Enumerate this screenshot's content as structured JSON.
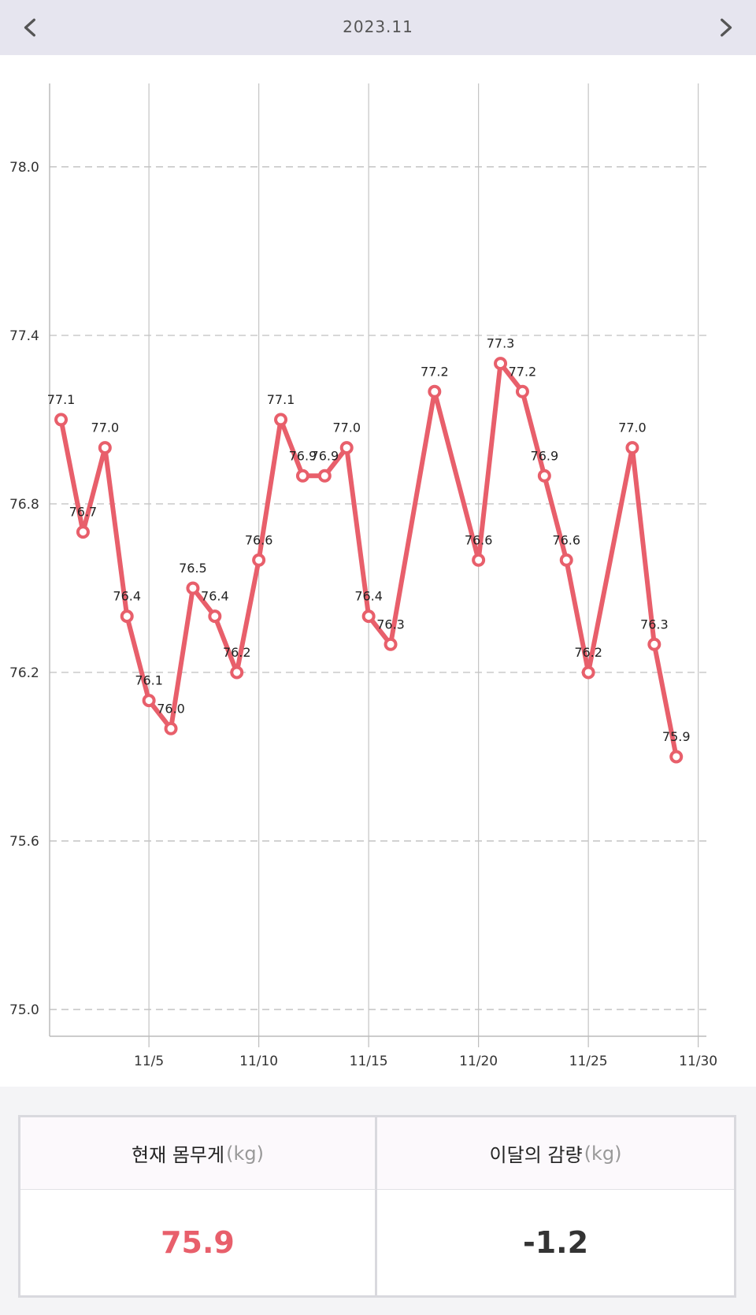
{
  "header": {
    "title": "2023.11",
    "prev_icon": "chevron-left-icon",
    "next_icon": "chevron-right-icon"
  },
  "chart_data": {
    "type": "line",
    "ylim": [
      75.0,
      78.3
    ],
    "y_ticks": [
      "75.0",
      "75.6",
      "76.2",
      "76.8",
      "77.4",
      "78.0"
    ],
    "x_tick_labels": [
      {
        "day": 5,
        "label": "11/5"
      },
      {
        "day": 10,
        "label": "11/10"
      },
      {
        "day": 15,
        "label": "11/15"
      },
      {
        "day": 20,
        "label": "11/20"
      },
      {
        "day": 25,
        "label": "11/25"
      },
      {
        "day": 30,
        "label": "11/30"
      }
    ],
    "grid": "horizontal dashed, vertical solid",
    "line_color": "#e85f6b",
    "points": [
      {
        "day": 1,
        "value": 77.1
      },
      {
        "day": 2,
        "value": 76.7
      },
      {
        "day": 3,
        "value": 77.0
      },
      {
        "day": 4,
        "value": 76.4
      },
      {
        "day": 5,
        "value": 76.1
      },
      {
        "day": 6,
        "value": 76.0
      },
      {
        "day": 7,
        "value": 76.5
      },
      {
        "day": 8,
        "value": 76.4
      },
      {
        "day": 9,
        "value": 76.2
      },
      {
        "day": 10,
        "value": 76.6
      },
      {
        "day": 11,
        "value": 77.1
      },
      {
        "day": 12,
        "value": 76.9
      },
      {
        "day": 13,
        "value": 76.9
      },
      {
        "day": 14,
        "value": 77.0
      },
      {
        "day": 15,
        "value": 76.4
      },
      {
        "day": 16,
        "value": 76.3
      },
      {
        "day": 18,
        "value": 77.2
      },
      {
        "day": 20,
        "value": 76.6
      },
      {
        "day": 21,
        "value": 77.3
      },
      {
        "day": 22,
        "value": 77.2
      },
      {
        "day": 23,
        "value": 76.9
      },
      {
        "day": 24,
        "value": 76.6
      },
      {
        "day": 25,
        "value": 76.2
      },
      {
        "day": 27,
        "value": 77.0
      },
      {
        "day": 28,
        "value": 76.3
      },
      {
        "day": 29,
        "value": 75.9
      }
    ]
  },
  "summary": {
    "current_label": "현재 몸무게",
    "change_label": "이달의 감량",
    "unit": "(kg)",
    "current_value": "75.9",
    "change_value": "-1.2",
    "current_color": "#e85f6b"
  }
}
